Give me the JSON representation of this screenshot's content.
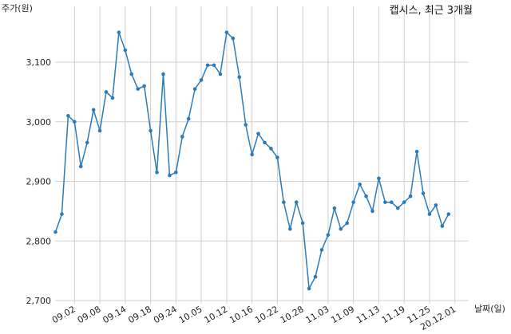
{
  "chart_data": {
    "type": "line",
    "title": "캡시스, 최근 3개월",
    "ylabel": "주가(원)",
    "xlabel": "날짜(일)",
    "ylim": [
      2700,
      3200
    ],
    "yticks": [
      2700,
      2800,
      2900,
      3000,
      3100
    ],
    "ytick_labels": [
      "2,700",
      "2,800",
      "2,900",
      "3,000",
      "3,100"
    ],
    "xticks": [
      "09.02",
      "09.08",
      "09.14",
      "09.18",
      "09.24",
      "10.05",
      "10.12",
      "10.16",
      "10.22",
      "10.28",
      "11.03",
      "11.09",
      "11.13",
      "11.19",
      "11.25",
      "20.12.01"
    ],
    "xtick_index": [
      3,
      7,
      11,
      15,
      19,
      23,
      27,
      31,
      35,
      39,
      43,
      47,
      51,
      55,
      59,
      63
    ],
    "grid": true,
    "color": "#2b7bba",
    "series": [
      {
        "values": [
          2815,
          2845,
          3010,
          3000,
          2925,
          2965,
          3020,
          2985,
          3050,
          3040,
          3150,
          3120,
          3080,
          3055,
          3060,
          2985,
          2915,
          3080,
          2910,
          2915,
          2975,
          3005,
          3055,
          3070,
          3095,
          3095,
          3080,
          3150,
          3140,
          3075,
          2995,
          2945,
          2980,
          2965,
          2955,
          2940,
          2865,
          2820,
          2865,
          2830,
          2720,
          2740,
          2785,
          2810,
          2855,
          2820,
          2830,
          2865,
          2895,
          2875,
          2850,
          2905,
          2865,
          2865,
          2855,
          2865,
          2875,
          2950,
          2880,
          2845,
          2860,
          2825,
          2845
        ]
      }
    ]
  }
}
